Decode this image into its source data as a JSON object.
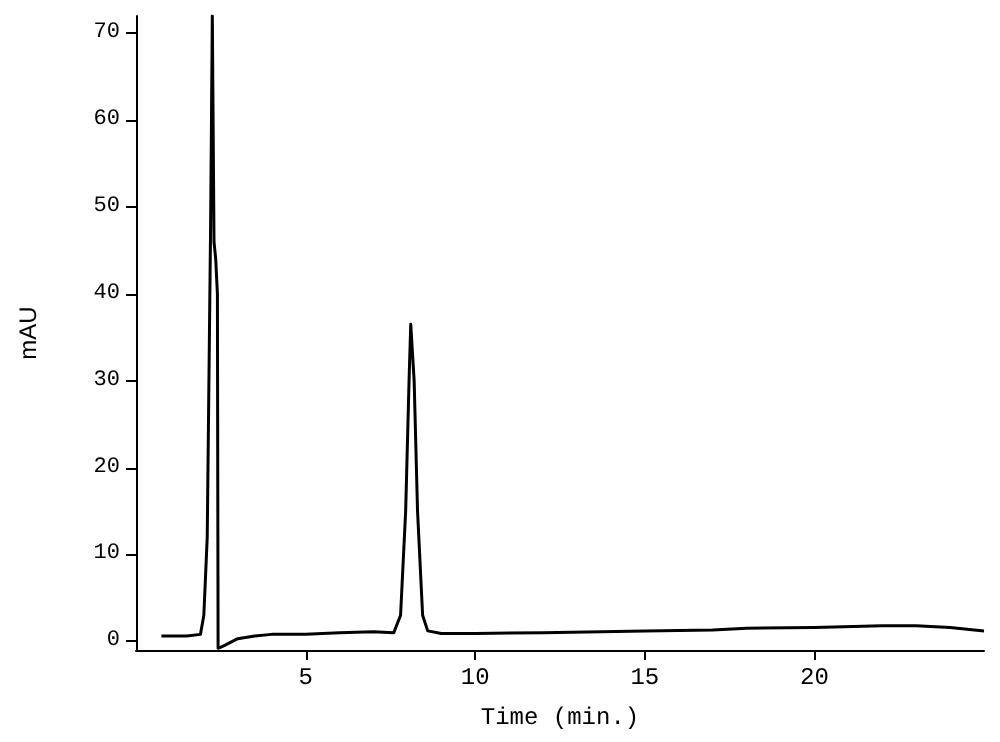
{
  "chart_data": {
    "type": "line",
    "xlabel": "Time (min.)",
    "ylabel": "mAU",
    "x": [
      0.75,
      1.5,
      1.9,
      2.0,
      2.1,
      2.15,
      2.2,
      2.25,
      2.3,
      2.35,
      2.4,
      2.42,
      2.6,
      3.0,
      3.5,
      4,
      5,
      6,
      7,
      7.6,
      7.8,
      7.95,
      8.05,
      8.1,
      8.2,
      8.3,
      8.45,
      8.6,
      9,
      10,
      12,
      15,
      17,
      18,
      20,
      22,
      23,
      24,
      25
    ],
    "series": [
      {
        "color": "#000000",
        "values": [
          0.6,
          0.6,
          0.8,
          3,
          12,
          30,
          48,
          72,
          46,
          44,
          40,
          -0.8,
          -0.5,
          0.3,
          0.6,
          0.8,
          0.8,
          1.0,
          1.1,
          1.0,
          3,
          15,
          30,
          36.5,
          30,
          15,
          3,
          1.2,
          0.9,
          0.9,
          1.0,
          1.2,
          1.3,
          1.5,
          1.6,
          1.8,
          1.8,
          1.6,
          1.2
        ]
      }
    ],
    "xlim": [
      0,
      25
    ],
    "xticks": [
      5,
      10,
      15,
      20
    ],
    "ylim": [
      -1,
      72
    ],
    "yticks": [
      0,
      10,
      20,
      30,
      40,
      50,
      60,
      70
    ],
    "grid": false,
    "marker": "none",
    "line_style": "solid"
  }
}
